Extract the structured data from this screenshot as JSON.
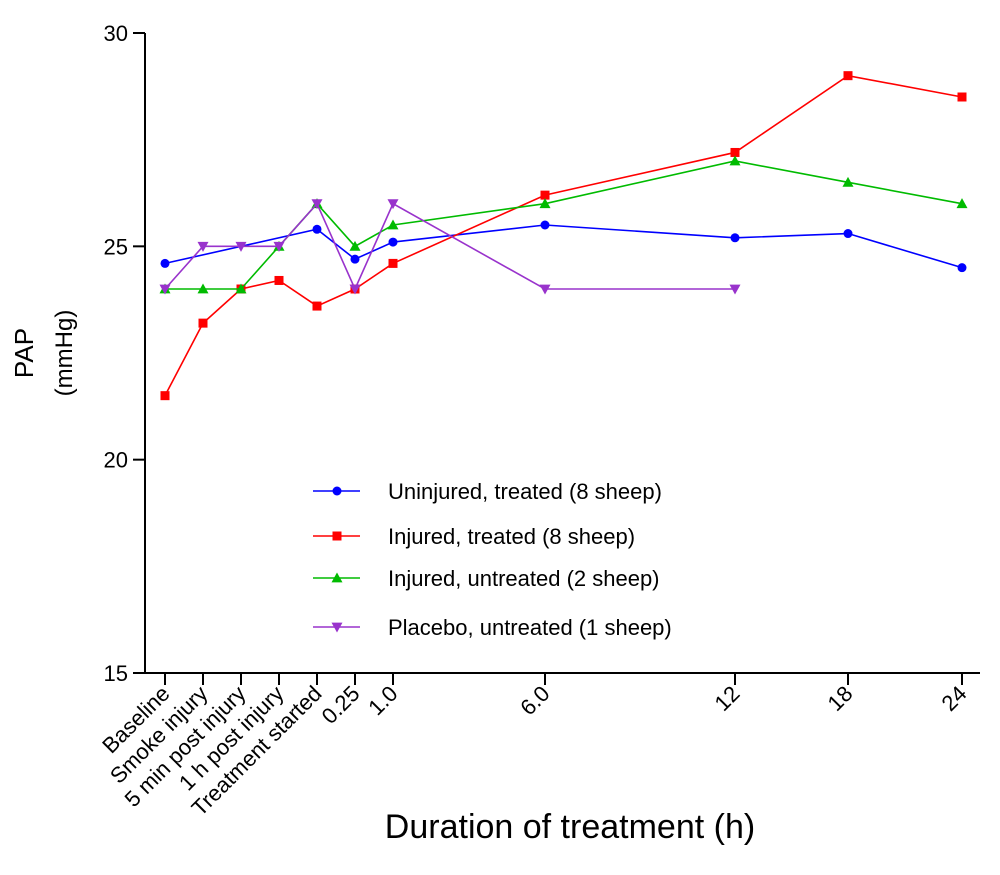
{
  "chart_data": {
    "type": "line",
    "xlabel": "Duration of treatment (h)",
    "ylabel": "PAP",
    "ylabel_unit": "(mmHg)",
    "ylim": [
      15,
      30
    ],
    "yticks": [
      "15",
      "20",
      "25",
      "30"
    ],
    "categories": [
      "Baseline",
      "Smoke injury",
      "5 min post injury",
      "1 h post injury",
      "Treatment started",
      "0.25",
      "1.0",
      "6.0",
      "12",
      "18",
      "24"
    ],
    "grid": false,
    "legend_position": "center",
    "series": [
      {
        "name": "Uninjured, treated (8 sheep)",
        "color": "#0000ff",
        "marker": "circle",
        "values": [
          24.6,
          null,
          null,
          null,
          25.4,
          24.7,
          25.1,
          25.5,
          25.2,
          25.3,
          24.5
        ]
      },
      {
        "name": "Injured, treated (8 sheep)",
        "color": "#ff0000",
        "marker": "square",
        "values": [
          21.5,
          23.2,
          24.0,
          24.2,
          23.6,
          24.0,
          24.6,
          26.2,
          27.2,
          29.0,
          28.5
        ]
      },
      {
        "name": "Injured, untreated (2 sheep)",
        "color": "#00bb00",
        "marker": "triangle-up",
        "values": [
          24.0,
          24.0,
          24.0,
          25.0,
          26.0,
          25.0,
          25.5,
          26.0,
          27.0,
          26.5,
          26.0
        ]
      },
      {
        "name": "Placebo, untreated (1 sheep)",
        "color": "#9933cc",
        "marker": "triangle-down",
        "values": [
          24.0,
          25.0,
          25.0,
          25.0,
          26.0,
          24.0,
          26.0,
          24.0,
          24.0,
          null,
          null
        ]
      }
    ]
  }
}
